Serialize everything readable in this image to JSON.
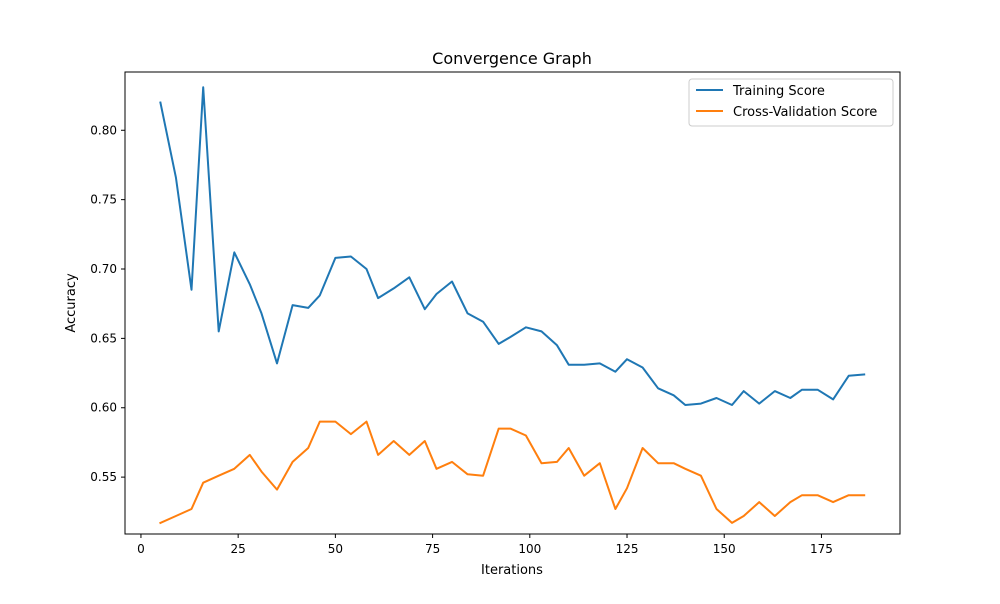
{
  "chart_data": {
    "type": "line",
    "title": "Convergence Graph",
    "xlabel": "Iterations",
    "ylabel": "Accuracy",
    "xlim": [
      -4.1,
      195.2
    ],
    "ylim": [
      0.509,
      0.842
    ],
    "xticks": [
      0,
      25,
      50,
      75,
      100,
      125,
      150,
      175
    ],
    "xtick_labels": [
      "0",
      "25",
      "50",
      "75",
      "100",
      "125",
      "150",
      "175"
    ],
    "yticks": [
      0.55,
      0.6,
      0.65,
      0.7,
      0.75,
      0.8
    ],
    "ytick_labels": [
      "0.55",
      "0.60",
      "0.65",
      "0.70",
      "0.75",
      "0.80"
    ],
    "grid": false,
    "legend_position": "top-right",
    "x": [
      5,
      9,
      13,
      16,
      20,
      24,
      28,
      31,
      35,
      39,
      43,
      46,
      50,
      54,
      58,
      61,
      65,
      69,
      73,
      76,
      80,
      84,
      88,
      92,
      95,
      99,
      103,
      107,
      110,
      114,
      118,
      122,
      125,
      129,
      133,
      137,
      140,
      144,
      148,
      152,
      155,
      159,
      163,
      167,
      170,
      174,
      178,
      182,
      186
    ],
    "series": [
      {
        "name": "Training Score",
        "color": "#1f77b4",
        "values": [
          0.82,
          0.766,
          0.685,
          0.831,
          0.655,
          0.712,
          0.689,
          0.668,
          0.632,
          0.674,
          0.672,
          0.681,
          0.708,
          0.709,
          0.7,
          0.679,
          0.686,
          0.694,
          0.671,
          0.682,
          0.691,
          0.668,
          0.662,
          0.646,
          0.651,
          0.658,
          0.655,
          0.645,
          0.631,
          0.631,
          0.632,
          0.626,
          0.635,
          0.629,
          0.614,
          0.609,
          0.602,
          0.603,
          0.607,
          0.602,
          0.612,
          0.603,
          0.612,
          0.607,
          0.613,
          0.613,
          0.606,
          0.623,
          0.624
        ]
      },
      {
        "name": "Cross-Validation Score",
        "color": "#ff7f0e",
        "values": [
          0.517,
          0.522,
          0.527,
          0.546,
          0.551,
          0.556,
          0.566,
          0.554,
          0.541,
          0.561,
          0.571,
          0.59,
          0.59,
          0.581,
          0.59,
          0.566,
          0.576,
          0.566,
          0.576,
          0.556,
          0.561,
          0.552,
          0.551,
          0.585,
          0.585,
          0.58,
          0.56,
          0.561,
          0.571,
          0.551,
          0.56,
          0.527,
          0.542,
          0.571,
          0.56,
          0.56,
          0.556,
          0.551,
          0.527,
          0.517,
          0.522,
          0.532,
          0.522,
          0.532,
          0.537,
          0.537,
          0.532,
          0.537,
          0.537
        ]
      }
    ]
  }
}
